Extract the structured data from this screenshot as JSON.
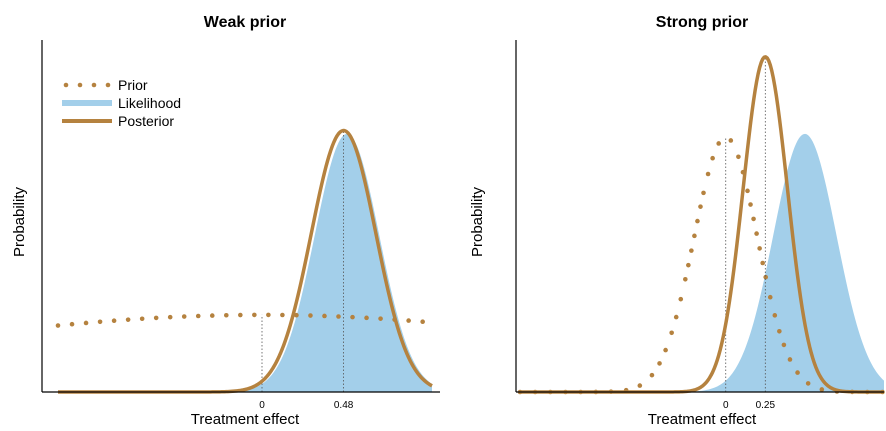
{
  "colors": {
    "prior": "#B5823F",
    "likelihood": "#A3CFEA",
    "posterior": "#B5823F",
    "axis": "#000000",
    "guide": "#555555"
  },
  "legend": {
    "prior": "Prior",
    "likelihood": "Likelihood",
    "posterior": "Posterior"
  },
  "chart_data": [
    {
      "type": "area",
      "title": "Weak prior",
      "xlabel": "Treatment effect",
      "ylabel": "Probability",
      "xlim": [
        -1.2,
        1.0
      ],
      "ylim": [
        0,
        1.05
      ],
      "xticks": [
        {
          "value": 0,
          "label": "0"
        },
        {
          "value": 0.48,
          "label": "0.48"
        }
      ],
      "legend_position": "top-left",
      "series": [
        {
          "name": "Prior",
          "kind": "dotted-line",
          "mean": 0.0,
          "sd": 2.2,
          "peak": 0.23
        },
        {
          "name": "Likelihood",
          "kind": "filled-area",
          "mean": 0.5,
          "sd": 0.19,
          "peak": 0.77
        },
        {
          "name": "Posterior",
          "kind": "solid-line",
          "mean": 0.48,
          "sd": 0.19,
          "peak": 0.78
        }
      ],
      "guides": [
        {
          "x": 0,
          "to_series": "Prior"
        },
        {
          "x": 0.48,
          "to_series": "Posterior"
        }
      ]
    },
    {
      "type": "area",
      "title": "Strong prior",
      "xlabel": "Treatment effect",
      "ylabel": "Probability",
      "xlim": [
        -1.3,
        1.0
      ],
      "ylim": [
        0,
        1.05
      ],
      "xticks": [
        {
          "value": 0,
          "label": "0"
        },
        {
          "value": 0.25,
          "label": "0.25"
        }
      ],
      "series": [
        {
          "name": "Prior",
          "kind": "dotted-line",
          "mean": 0.0,
          "sd": 0.2,
          "peak": 0.76
        },
        {
          "name": "Likelihood",
          "kind": "filled-area",
          "mean": 0.5,
          "sd": 0.2,
          "peak": 0.77
        },
        {
          "name": "Posterior",
          "kind": "solid-line",
          "mean": 0.25,
          "sd": 0.14,
          "peak": 1.0
        }
      ],
      "guides": [
        {
          "x": 0,
          "to_series": "Prior"
        },
        {
          "x": 0.25,
          "to_series": "Posterior"
        }
      ]
    }
  ]
}
